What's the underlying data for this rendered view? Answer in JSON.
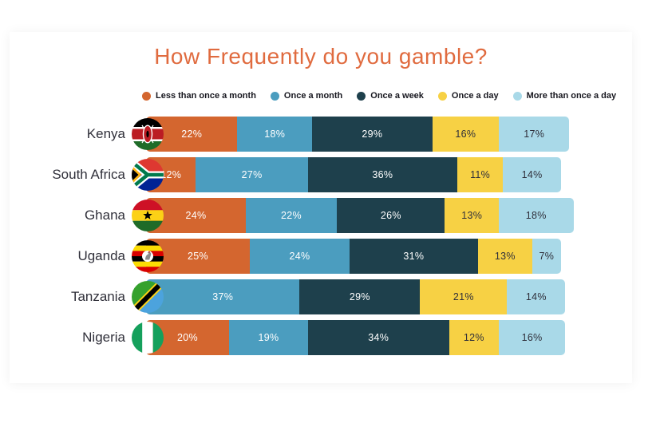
{
  "title": "How Frequently do you gamble?",
  "title_color": "#E06B3F",
  "flag_icons": [
    "kenya-flag-icon",
    "south-africa-flag-icon",
    "ghana-flag-icon",
    "uganda-flag-icon",
    "tanzania-flag-icon",
    "nigeria-flag-icon"
  ],
  "chart_data": {
    "type": "bar",
    "stacked": true,
    "orientation": "horizontal",
    "title": "How Frequently do you gamble?",
    "unit": "%",
    "legend_position": "top",
    "value_labels": "inside",
    "axis": "none",
    "categories": [
      "Kenya",
      "South Africa",
      "Ghana",
      "Uganda",
      "Tanzania",
      "Nigeria"
    ],
    "series": [
      {
        "name": "Less than once a month",
        "color": "#D4662F",
        "text_style": "light",
        "values": [
          22,
          12,
          24,
          25,
          0,
          20
        ]
      },
      {
        "name": "Once a month",
        "color": "#4B9DBF",
        "text_style": "light",
        "values": [
          18,
          27,
          22,
          24,
          37,
          19
        ]
      },
      {
        "name": "Once a week",
        "color": "#1E404C",
        "text_style": "light",
        "values": [
          29,
          36,
          26,
          31,
          29,
          34
        ]
      },
      {
        "name": "Once a day",
        "color": "#F7D144",
        "text_style": "dark",
        "values": [
          16,
          11,
          13,
          13,
          21,
          12
        ]
      },
      {
        "name": "More than once a day",
        "color": "#A9D9E8",
        "text_style": "dark",
        "values": [
          17,
          14,
          18,
          7,
          14,
          16
        ]
      }
    ]
  }
}
